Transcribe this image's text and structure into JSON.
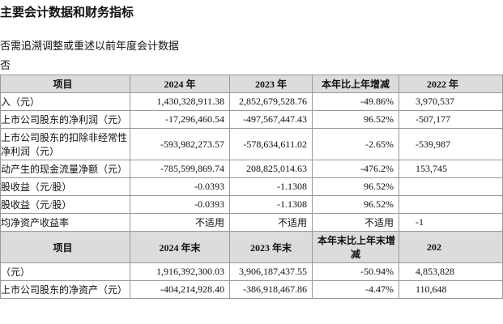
{
  "title": "主要会计数据和财务指标",
  "note": "否需追溯调整或重述以前年度会计数据",
  "answer": "否",
  "table": {
    "header": [
      "项目",
      "2024 年",
      "2023 年",
      "本年比上年增减",
      "2022 年"
    ],
    "rows": [
      [
        [
          "入（元）"
        ],
        "1,430,328,911.38",
        "2,852,679,528.76",
        "-49.86%",
        "3,970,537"
      ],
      [
        [
          "上市公司股东的净利润（元）"
        ],
        "-17,296,460.54",
        "-497,567,447.43",
        "96.52%",
        "-507,177"
      ],
      [
        [
          "上市公司股东的扣除非经常性",
          "净利润（元）"
        ],
        "-593,982,273.57",
        "-578,634,611.02",
        "-2.65%",
        "-539,987"
      ],
      [
        [
          "动产生的现金流量净额（元）"
        ],
        "-785,599,869.74",
        "208,825,014.63",
        "-476.2%",
        "153,745"
      ],
      [
        [
          "股收益（元/股）"
        ],
        "-0.0393",
        "-1.1308",
        "96.52%",
        null
      ],
      [
        [
          "股收益（元/股）"
        ],
        "-0.0393",
        "-1.1308",
        "96.52%",
        null
      ],
      [
        [
          "均净资产收益率"
        ],
        "不适用",
        "不适用",
        "不适用",
        "-1"
      ]
    ],
    "header2": [
      "项目",
      "2024 年末",
      "2023 年末",
      [
        "本年末比上年末增",
        "减"
      ],
      "202"
    ],
    "rows2": [
      [
        [
          "（元）"
        ],
        "1,916,392,300.03",
        "3,906,187,437.55",
        "-50.94%",
        "4,853,828"
      ],
      [
        [
          "上市公司股东的净资产（元）"
        ],
        "-404,214,928.40",
        "-386,918,467.86",
        "-4.47%",
        "110,648"
      ]
    ]
  }
}
